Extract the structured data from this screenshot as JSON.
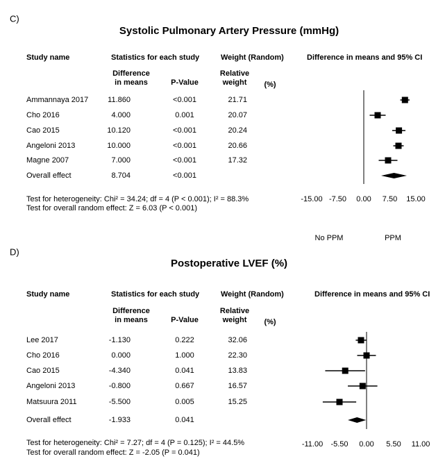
{
  "chart_data": [
    {
      "type": "forest",
      "panel_label": "C)",
      "title": "Systolic Pulmonary Artery Pressure (mmHg)",
      "headers": {
        "study": "Study name",
        "stats": "Statistics for each study",
        "weight": "Weight (Random)",
        "plot": "Difference in means and 95% CI",
        "diff": [
          "Difference",
          "in means"
        ],
        "p": "P-Value",
        "rel": [
          "Relative",
          "weight"
        ],
        "pct": "(%)"
      },
      "categories": [
        "Ammannaya 2017",
        "Cho 2016",
        "Cao 2015",
        "Angeloni 2013",
        "Magne 2007",
        "Overall effect"
      ],
      "values": [
        11.86,
        4,
        10.12,
        10,
        7,
        8.704
      ],
      "value_labels": [
        "11.860",
        "4.000",
        "10.120",
        "10.000",
        "7.000",
        "8.704"
      ],
      "ci_lower": [
        10.5,
        1.7,
        8.2,
        8.5,
        4.3,
        5.0
      ],
      "ci_upper": [
        13.2,
        6.3,
        12.0,
        11.5,
        9.7,
        12.4
      ],
      "p_values": [
        "<0.001",
        "0.001",
        "<0.001",
        "<0.001",
        "<0.001",
        "<0.001"
      ],
      "weights": [
        "21.71",
        "20.07",
        "20.24",
        "20.66",
        "17.32",
        null
      ],
      "xlim": [
        -15,
        15
      ],
      "xticks": [
        {
          "value": -15,
          "label": "-15.00"
        },
        {
          "value": -7.5,
          "label": "-7.50"
        },
        {
          "value": 0,
          "label": "0.00"
        },
        {
          "value": 7.5,
          "label": "7.50"
        },
        {
          "value": 15,
          "label": "15.00"
        }
      ],
      "x_labels": [
        "No PPM",
        "PPM"
      ],
      "footnotes": [
        "Test for heterogeneity: Chi² = 34.24; df = 4 (P < 0.001); I² = 88.3%",
        "Test for overall random effect: Z = 6.03 (P < 0.001)"
      ]
    },
    {
      "type": "forest",
      "panel_label": "D)",
      "title": "Postoperative LVEF (%)",
      "headers": {
        "study": "Study name",
        "stats": "Statistics for each study",
        "weight": "Weight (Random)",
        "plot": "Difference in means and 95% CI",
        "diff": [
          "Difference",
          "in means"
        ],
        "p": "P-Value",
        "rel": [
          "Relative",
          "weight"
        ],
        "pct": "(%)"
      },
      "categories": [
        "Lee 2017",
        "Cho 2016",
        "Cao 2015",
        "Angeloni 2013",
        "Matsuura 2011",
        "Overall effect"
      ],
      "values": [
        -1.13,
        0,
        -4.34,
        -0.8,
        -5.5,
        -1.933
      ],
      "value_labels": [
        "-1.130",
        "0.000",
        "-4.340",
        "-0.800",
        "-5.500",
        "-1.933"
      ],
      "ci_lower": [
        -2.2,
        -1.9,
        -8.4,
        -3.8,
        -8.9,
        -3.8
      ],
      "ci_upper": [
        -0.06,
        1.9,
        -0.3,
        2.2,
        -2.1,
        -0.1
      ],
      "p_values": [
        "0.222",
        "1.000",
        "0.041",
        "0.667",
        "0.005",
        "0.041"
      ],
      "weights": [
        "32.06",
        "22.30",
        "13.83",
        "16.57",
        "15.25",
        null
      ],
      "xlim": [
        -11,
        11
      ],
      "xticks": [
        {
          "value": -11,
          "label": "-11.00"
        },
        {
          "value": -5.5,
          "label": "-5.50"
        },
        {
          "value": 0,
          "label": "0.00"
        },
        {
          "value": 5.5,
          "label": "5.50"
        },
        {
          "value": 11,
          "label": "11.00"
        }
      ],
      "footnotes": [
        "Test for heterogeneity: Chi² = 7.27; df = 4 (P = 0.125); I² = 44.5%",
        "Test for overall random effect: Z = -2.05 (P = 0.041)"
      ]
    }
  ]
}
